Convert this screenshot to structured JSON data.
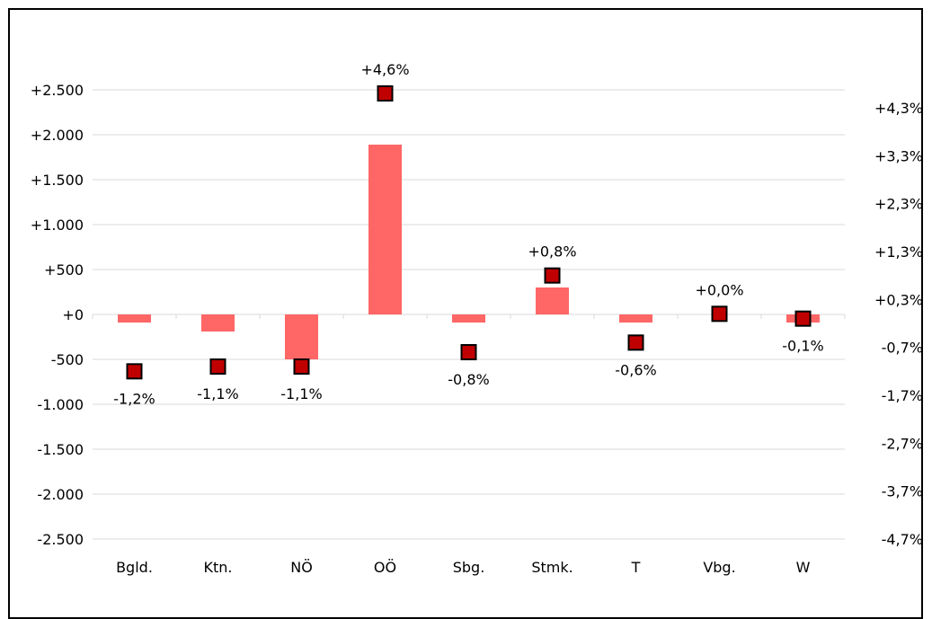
{
  "chart_data": {
    "type": "bar",
    "categories": [
      "Bgld.",
      "Ktn.",
      "NÖ",
      "OÖ",
      "Sbg.",
      "Stmk.",
      "T",
      "Vbg.",
      "W"
    ],
    "series": [
      {
        "axis": "left",
        "type": "bar",
        "values": [
          -90,
          -190,
          -500,
          1890,
          -90,
          300,
          -90,
          0,
          -90
        ]
      },
      {
        "axis": "right",
        "type": "scatter",
        "values": [
          -1.2,
          -1.1,
          -1.1,
          4.6,
          -0.8,
          0.8,
          -0.6,
          0.0,
          -0.1
        ],
        "labels": [
          "-1,2%",
          "-1,1%",
          "-1,1%",
          "+4,6%",
          "-0,8%",
          "+0,8%",
          "-0,6%",
          "+0,0%",
          "-0,1%"
        ],
        "label_position": [
          "below",
          "below",
          "below",
          "above",
          "below",
          "above",
          "below",
          "above",
          "below"
        ]
      }
    ],
    "ylim": [
      -2500,
      2500
    ],
    "y_ticks": [
      {
        "value": 2500,
        "label": "+2.500"
      },
      {
        "value": 2000,
        "label": "+2.000"
      },
      {
        "value": 1500,
        "label": "+1.500"
      },
      {
        "value": 1000,
        "label": "+1.000"
      },
      {
        "value": 500,
        "label": "+500"
      },
      {
        "value": 0,
        "label": "+0"
      },
      {
        "value": -500,
        "label": "-500"
      },
      {
        "value": -1000,
        "label": "-1.000"
      },
      {
        "value": -1500,
        "label": "-1.500"
      },
      {
        "value": -2000,
        "label": "-2.000"
      },
      {
        "value": -2500,
        "label": "-2.500"
      }
    ],
    "y2lim": [
      -4.7,
      4.3
    ],
    "y2_ticks": [
      {
        "value": 4.3,
        "label": "+4,3%"
      },
      {
        "value": 3.3,
        "label": "+3,3%"
      },
      {
        "value": 2.3,
        "label": "+2,3%"
      },
      {
        "value": 1.3,
        "label": "+1,3%"
      },
      {
        "value": 0.3,
        "label": "+0,3%"
      },
      {
        "value": -0.7,
        "label": "-0,7%"
      },
      {
        "value": -1.7,
        "label": "-1,7%"
      },
      {
        "value": -2.7,
        "label": "-2,7%"
      },
      {
        "value": -3.7,
        "label": "-3,7%"
      },
      {
        "value": -4.7,
        "label": "-4,7%"
      }
    ],
    "grid": true,
    "legend": "none",
    "colors": {
      "bar": "#FF6666",
      "marker_fill": "#C00000",
      "marker_stroke": "#000000",
      "grid": "#D9D9D9"
    }
  }
}
